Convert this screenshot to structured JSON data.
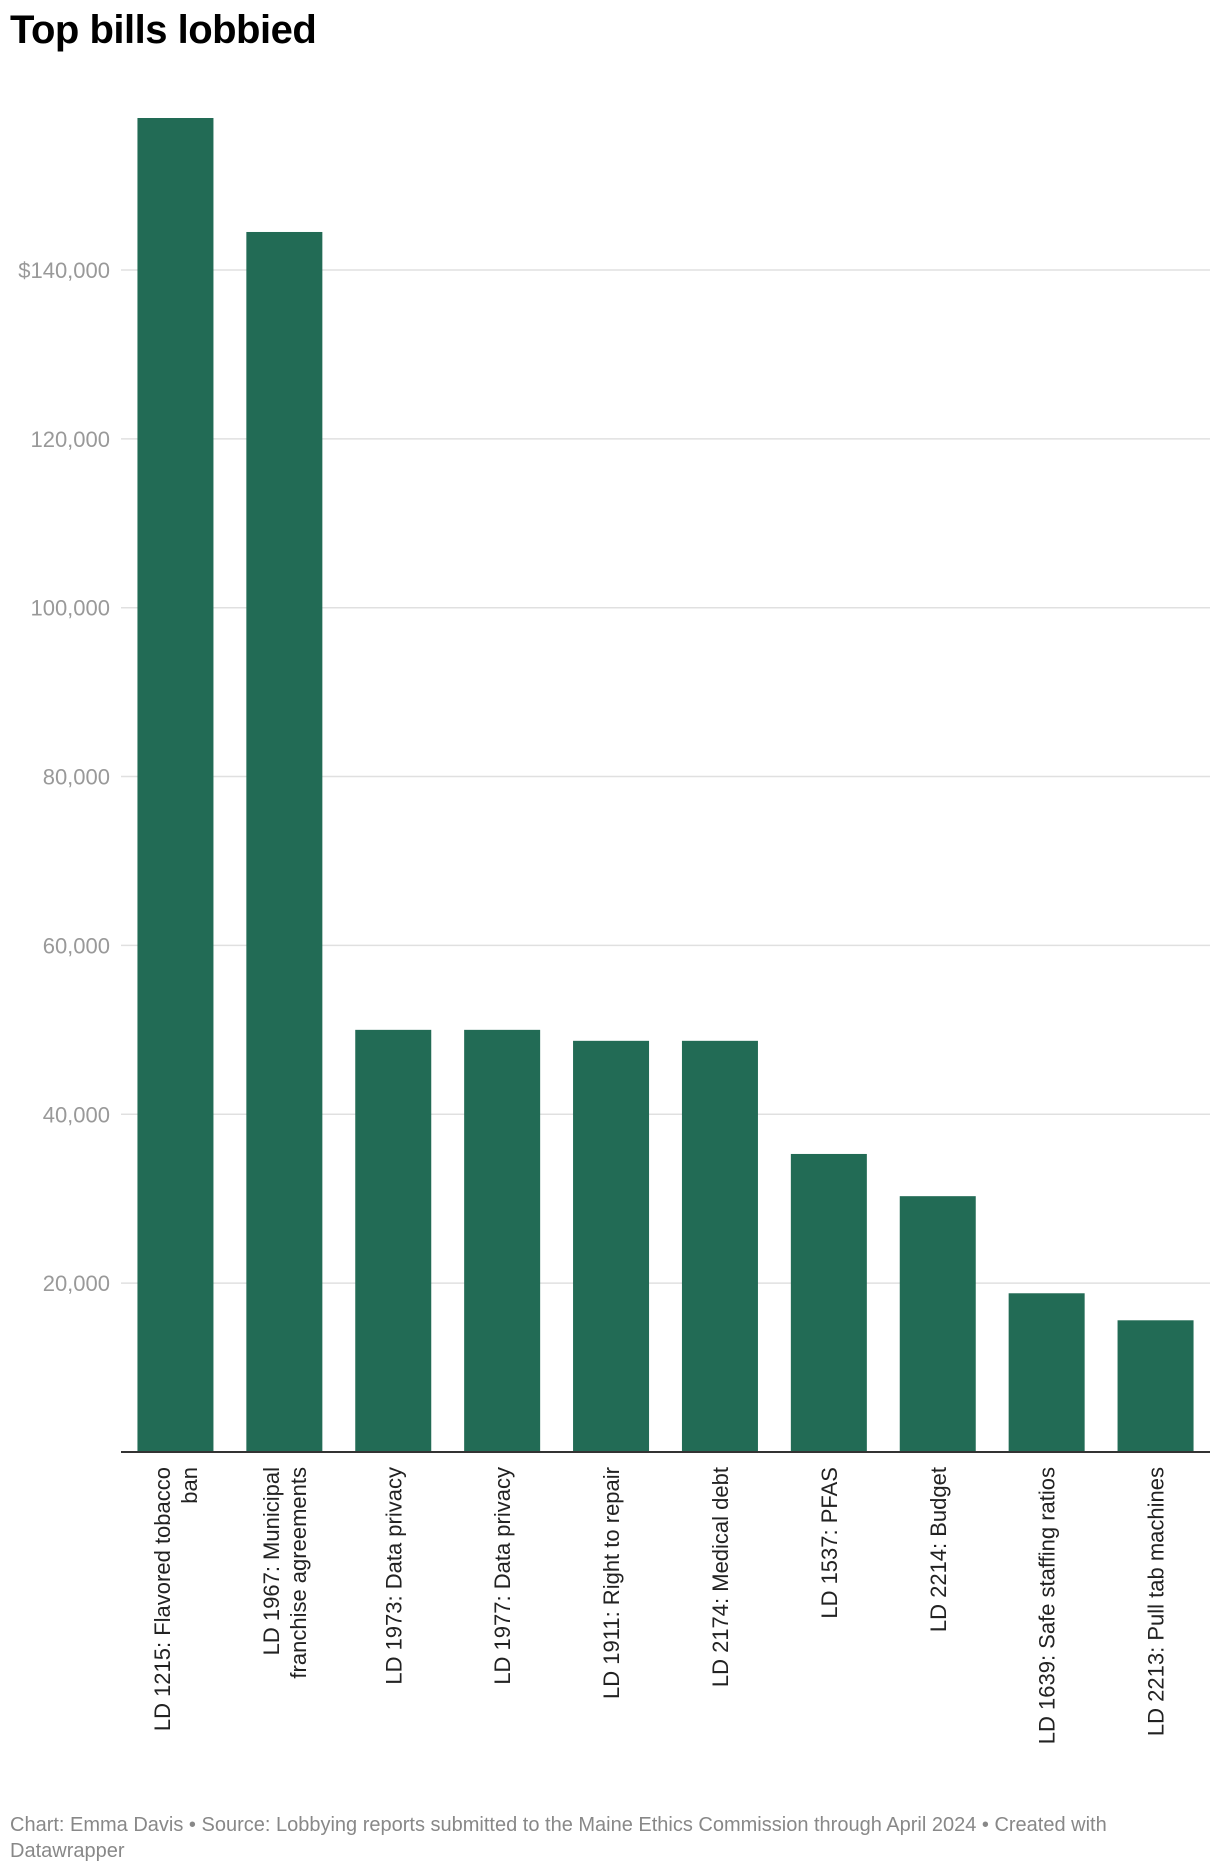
{
  "title": "Top bills lobbied",
  "footer": "Chart: Emma Davis • Source: Lobbying reports submitted to the Maine Ethics Commission through April 2024 • Created with Datawrapper",
  "colors": {
    "bar": "#226b55",
    "grid": "#e0e0e0",
    "axis": "#333333",
    "tick_text": "#999999"
  },
  "chart_data": {
    "type": "bar",
    "categories": [
      [
        "LD 1215: Flavored tobacco",
        "ban"
      ],
      [
        "LD 1967: Municipal",
        "franchise agreements"
      ],
      [
        "LD 1973: Data privacy"
      ],
      [
        "LD 1977: Data privacy"
      ],
      [
        "LD 1911: Right to repair"
      ],
      [
        "LD 2174: Medical debt"
      ],
      [
        "LD 1537: PFAS"
      ],
      [
        "LD 2214: Budget"
      ],
      [
        "LD 1639: Safe staffing ratios"
      ],
      [
        "LD 2213: Pull tab machines"
      ]
    ],
    "values": [
      158000,
      144500,
      50000,
      50000,
      48700,
      48700,
      35300,
      30300,
      18800,
      15600
    ],
    "yticks": [
      {
        "value": 20000,
        "label": "20,000"
      },
      {
        "value": 40000,
        "label": "40,000"
      },
      {
        "value": 60000,
        "label": "60,000"
      },
      {
        "value": 80000,
        "label": "80,000"
      },
      {
        "value": 100000,
        "label": "100,000"
      },
      {
        "value": 120000,
        "label": "120,000"
      },
      {
        "value": 140000,
        "label": "$140,000"
      }
    ],
    "ylim": [
      0,
      158000
    ],
    "grid": true
  }
}
